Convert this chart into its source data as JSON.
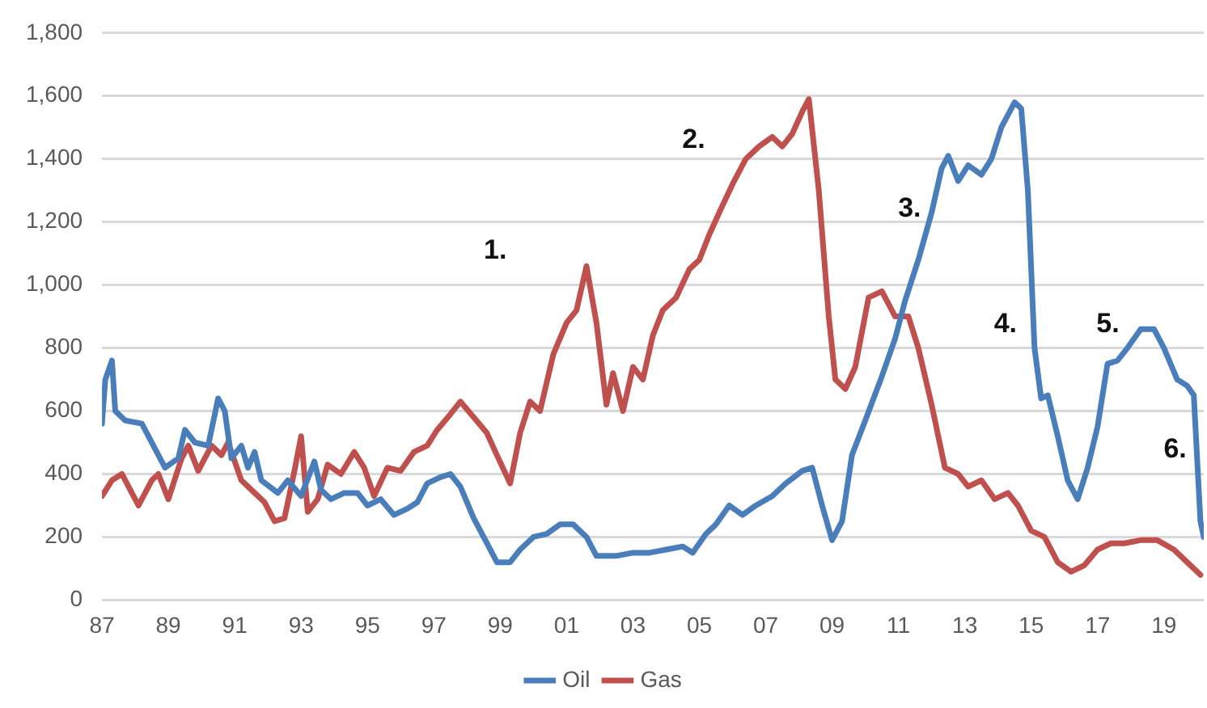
{
  "chart_data": {
    "type": "line",
    "xlim": [
      1987,
      2020.2
    ],
    "xticks": [
      {
        "value": 1987,
        "label": "87"
      },
      {
        "value": 1989,
        "label": "89"
      },
      {
        "value": 1991,
        "label": "91"
      },
      {
        "value": 1993,
        "label": "93"
      },
      {
        "value": 1995,
        "label": "95"
      },
      {
        "value": 1997,
        "label": "97"
      },
      {
        "value": 1999,
        "label": "99"
      },
      {
        "value": 2001,
        "label": "01"
      },
      {
        "value": 2003,
        "label": "03"
      },
      {
        "value": 2005,
        "label": "05"
      },
      {
        "value": 2007,
        "label": "07"
      },
      {
        "value": 2009,
        "label": "09"
      },
      {
        "value": 2011,
        "label": "11"
      },
      {
        "value": 2013,
        "label": "13"
      },
      {
        "value": 2015,
        "label": "15"
      },
      {
        "value": 2017,
        "label": "17"
      },
      {
        "value": 2019,
        "label": "19"
      }
    ],
    "ylim": [
      0,
      1800
    ],
    "yticks": [
      0,
      {
        "value": 200,
        "label": "200"
      },
      {
        "value": 400,
        "label": "400"
      },
      {
        "value": 600,
        "label": "600"
      },
      {
        "value": 800,
        "label": "800"
      },
      {
        "value": 1000,
        "label": "1,000"
      },
      {
        "value": 1200,
        "label": "1,200"
      },
      {
        "value": 1400,
        "label": "1,400"
      },
      {
        "value": 1600,
        "label": "1,600"
      },
      {
        "value": 1800,
        "label": "1,800"
      }
    ],
    "grid": "y",
    "legend": "bottom",
    "marker": "none",
    "line_style": "solid",
    "series": [
      {
        "name": "Oil",
        "color": "#4a7ebb",
        "x": [
          1987.0,
          1987.1,
          1987.3,
          1987.4,
          1987.7,
          1988.2,
          1988.6,
          1988.9,
          1989.3,
          1989.5,
          1989.8,
          1990.2,
          1990.5,
          1990.7,
          1990.9,
          1991.2,
          1991.4,
          1991.6,
          1991.8,
          1992.3,
          1992.6,
          1993.0,
          1993.4,
          1993.6,
          1993.9,
          1994.3,
          1994.7,
          1995.0,
          1995.4,
          1995.8,
          1996.2,
          1996.5,
          1996.8,
          1997.2,
          1997.5,
          1997.8,
          1998.2,
          1998.6,
          1998.9,
          1999.3,
          1999.6,
          2000.0,
          2000.4,
          2000.8,
          2001.2,
          2001.6,
          2001.9,
          2002.3,
          2002.5,
          2003.0,
          2003.5,
          2004.0,
          2004.5,
          2004.8,
          2005.2,
          2005.5,
          2005.9,
          2006.3,
          2006.7,
          2007.2,
          2007.6,
          2008.1,
          2008.4,
          2008.7,
          2009.0,
          2009.3,
          2009.6,
          2010.0,
          2010.5,
          2010.9,
          2011.2,
          2011.6,
          2012.0,
          2012.3,
          2012.5,
          2012.8,
          2013.1,
          2013.5,
          2013.8,
          2014.1,
          2014.5,
          2014.7,
          2014.9,
          2015.1,
          2015.3,
          2015.5,
          2015.8,
          2016.1,
          2016.4,
          2016.7,
          2017.0,
          2017.3,
          2017.6,
          2017.9,
          2018.3,
          2018.7,
          2019.0,
          2019.4,
          2019.7,
          2019.9,
          2020.1,
          2020.2
        ],
        "values": [
          560,
          700,
          760,
          600,
          570,
          560,
          480,
          420,
          450,
          540,
          500,
          490,
          640,
          600,
          450,
          490,
          420,
          470,
          380,
          340,
          380,
          330,
          440,
          350,
          320,
          340,
          340,
          300,
          320,
          270,
          290,
          310,
          370,
          390,
          400,
          360,
          260,
          180,
          120,
          120,
          160,
          200,
          210,
          240,
          240,
          200,
          140,
          140,
          140,
          150,
          150,
          160,
          170,
          150,
          210,
          240,
          300,
          270,
          300,
          330,
          370,
          410,
          420,
          300,
          190,
          250,
          460,
          570,
          710,
          830,
          950,
          1080,
          1230,
          1370,
          1410,
          1330,
          1380,
          1350,
          1400,
          1500,
          1580,
          1560,
          1300,
          800,
          640,
          650,
          520,
          380,
          320,
          420,
          550,
          750,
          760,
          800,
          860,
          860,
          800,
          700,
          680,
          650,
          250,
          200
        ]
      },
      {
        "name": "Gas",
        "color": "#c0504d",
        "x": [
          1987.0,
          1987.3,
          1987.6,
          1987.9,
          1988.1,
          1988.5,
          1988.7,
          1989.0,
          1989.4,
          1989.6,
          1989.9,
          1990.3,
          1990.6,
          1990.8,
          1991.2,
          1991.6,
          1991.9,
          1992.2,
          1992.5,
          1992.8,
          1993.0,
          1993.2,
          1993.5,
          1993.8,
          1994.2,
          1994.6,
          1994.9,
          1995.2,
          1995.6,
          1996.0,
          1996.4,
          1996.8,
          1997.1,
          1997.5,
          1997.8,
          1998.2,
          1998.6,
          1998.9,
          1999.3,
          1999.6,
          1999.9,
          2000.2,
          2000.6,
          2001.0,
          2001.3,
          2001.6,
          2001.9,
          2002.2,
          2002.4,
          2002.7,
          2003.0,
          2003.3,
          2003.6,
          2003.9,
          2004.3,
          2004.7,
          2005.0,
          2005.3,
          2005.6,
          2006.0,
          2006.4,
          2006.8,
          2007.2,
          2007.5,
          2007.8,
          2008.1,
          2008.3,
          2008.6,
          2008.9,
          2009.1,
          2009.4,
          2009.7,
          2010.1,
          2010.5,
          2010.9,
          2011.3,
          2011.6,
          2012.0,
          2012.4,
          2012.8,
          2013.1,
          2013.5,
          2013.9,
          2014.3,
          2014.6,
          2015.0,
          2015.4,
          2015.8,
          2016.2,
          2016.6,
          2017.0,
          2017.4,
          2017.8,
          2018.3,
          2018.8,
          2019.3,
          2019.7,
          2020.1
        ],
        "values": [
          330,
          380,
          400,
          340,
          300,
          380,
          400,
          320,
          450,
          490,
          410,
          490,
          460,
          500,
          380,
          340,
          310,
          250,
          260,
          410,
          520,
          280,
          320,
          430,
          400,
          470,
          420,
          330,
          420,
          410,
          470,
          490,
          540,
          590,
          630,
          580,
          530,
          460,
          370,
          530,
          630,
          600,
          780,
          880,
          920,
          1060,
          880,
          620,
          720,
          600,
          740,
          700,
          840,
          920,
          960,
          1050,
          1080,
          1160,
          1230,
          1320,
          1400,
          1440,
          1470,
          1440,
          1480,
          1550,
          1590,
          1300,
          900,
          700,
          670,
          740,
          960,
          980,
          900,
          900,
          800,
          620,
          420,
          400,
          360,
          380,
          320,
          340,
          300,
          220,
          200,
          120,
          90,
          110,
          160,
          180,
          180,
          190,
          190,
          160,
          120,
          80
        ]
      }
    ],
    "annotations": [
      "1.",
      "2.",
      "3.",
      "4.",
      "5.",
      "6."
    ]
  }
}
